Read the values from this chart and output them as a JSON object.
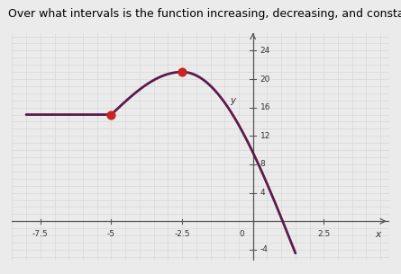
{
  "title": "Over what intervals is the function increasing, decreasing, and constant?",
  "title_fontsize": 9,
  "xlim": [
    -8.5,
    4.8
  ],
  "ylim": [
    -5.5,
    26.5
  ],
  "xtick_positions": [
    -7.5,
    -5.0,
    -2.5,
    2.5
  ],
  "xtick_labels": [
    "-7.5",
    "-5",
    "-2.5",
    "2.5"
  ],
  "ytick_positions": [
    -4,
    4,
    8,
    12,
    16,
    20,
    24
  ],
  "ytick_labels": [
    "-4",
    "4",
    "8",
    "12",
    "16",
    "20",
    "24"
  ],
  "x_label": "x",
  "y_label": "y",
  "curve_color": "#5c1a4a",
  "curve_linewidth": 2.0,
  "dot_color": "#cc2222",
  "dot_size": 40,
  "bg_color": "#ebebeb",
  "grid_color": "#d8d8d8",
  "constant_start_x": -8.0,
  "constant_end_x": -5.0,
  "constant_y": 15.0,
  "peak_x": -2.5,
  "peak_y": 21.0,
  "dot1_x": -5.0,
  "dot1_y": 15.0,
  "dot2_x": -2.5,
  "dot2_y": 21.0,
  "decrease_end_x": 1.5,
  "decrease_end_y": -4.5
}
